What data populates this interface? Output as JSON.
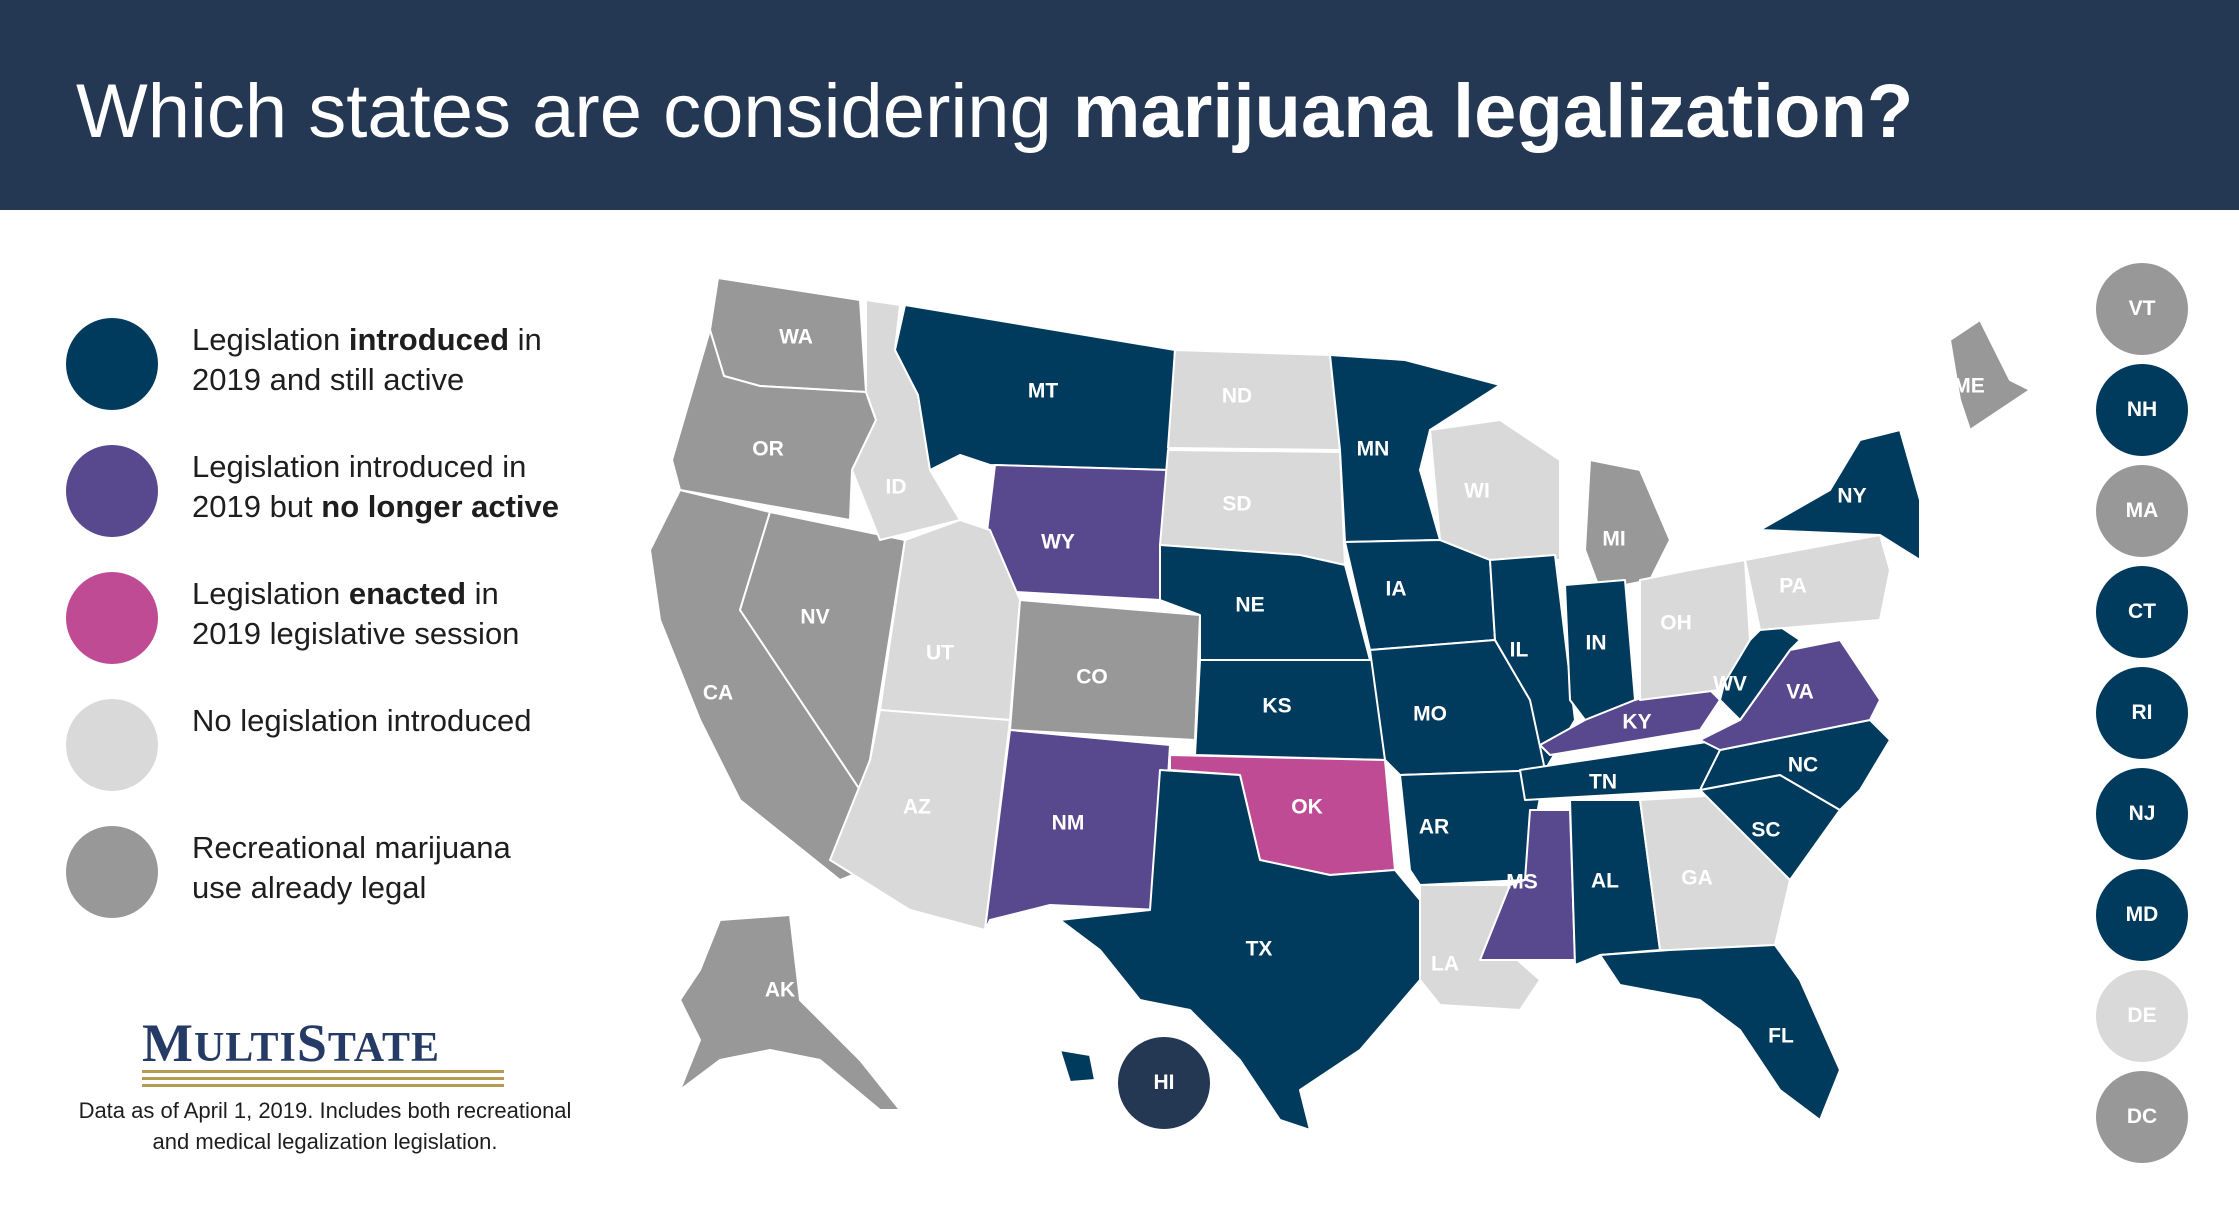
{
  "colors": {
    "header_bg": "#253853",
    "introduced_active": "#003a5c",
    "no_longer_active": "#58488e",
    "enacted": "#c04b95",
    "no_legislation": "#d9d9d9",
    "recreational_legal": "#989898"
  },
  "title": {
    "light": "Which states are considering ",
    "bold": "marijuana legalization?"
  },
  "legend": [
    {
      "color_key": "introduced_active",
      "pre": "Legislation ",
      "bold": "introduced",
      "post": " in\n2019 and still active"
    },
    {
      "color_key": "no_longer_active",
      "pre": "Legislation introduced in\n2019 but ",
      "bold": "no longer active",
      "post": ""
    },
    {
      "color_key": "enacted",
      "pre": "Legislation ",
      "bold": "enacted",
      "post": " in\n2019 legislative session"
    },
    {
      "color_key": "no_legislation",
      "pre": "No legislation introduced",
      "bold": "",
      "post": ""
    },
    {
      "color_key": "recreational_legal",
      "pre": "Recreational marijuana\nuse already legal",
      "bold": "",
      "post": ""
    }
  ],
  "logo": {
    "text_big1": "M",
    "text_small1": "ULTI",
    "text_big2": "S",
    "text_small2": "TATE"
  },
  "footnote": "Data as of April 1, 2019. Includes both recreational and medical legalization legislation.",
  "states": {
    "WA": "recreational_legal",
    "OR": "recreational_legal",
    "CA": "recreational_legal",
    "NV": "recreational_legal",
    "ID": "no_legislation",
    "MT": "introduced_active",
    "WY": "no_longer_active",
    "UT": "no_legislation",
    "AZ": "no_legislation",
    "CO": "recreational_legal",
    "NM": "no_longer_active",
    "ND": "no_legislation",
    "SD": "no_legislation",
    "NE": "introduced_active",
    "KS": "introduced_active",
    "OK": "enacted",
    "TX": "introduced_active",
    "MN": "introduced_active",
    "IA": "introduced_active",
    "MO": "introduced_active",
    "AR": "introduced_active",
    "LA": "no_legislation",
    "WI": "no_legislation",
    "IL": "introduced_active",
    "MS": "no_longer_active",
    "MI": "recreational_legal",
    "IN": "introduced_active",
    "KY": "no_longer_active",
    "TN": "introduced_active",
    "AL": "introduced_active",
    "GA": "no_legislation",
    "FL": "introduced_active",
    "SC": "introduced_active",
    "NC": "introduced_active",
    "VA": "no_longer_active",
    "WV": "introduced_active",
    "OH": "no_legislation",
    "PA": "no_legislation",
    "NY": "introduced_active",
    "ME": "recreational_legal",
    "AK": "recreational_legal",
    "HI": "introduced_active"
  },
  "side_circles": [
    {
      "label": "VT",
      "color_key": "recreational_legal"
    },
    {
      "label": "NH",
      "color_key": "introduced_active"
    },
    {
      "label": "MA",
      "color_key": "recreational_legal"
    },
    {
      "label": "CT",
      "color_key": "introduced_active"
    },
    {
      "label": "RI",
      "color_key": "introduced_active"
    },
    {
      "label": "NJ",
      "color_key": "introduced_active"
    },
    {
      "label": "MD",
      "color_key": "introduced_active"
    },
    {
      "label": "DE",
      "color_key": "no_legislation"
    },
    {
      "label": "DC",
      "color_key": "recreational_legal"
    }
  ],
  "hi_circle_label": "HI"
}
